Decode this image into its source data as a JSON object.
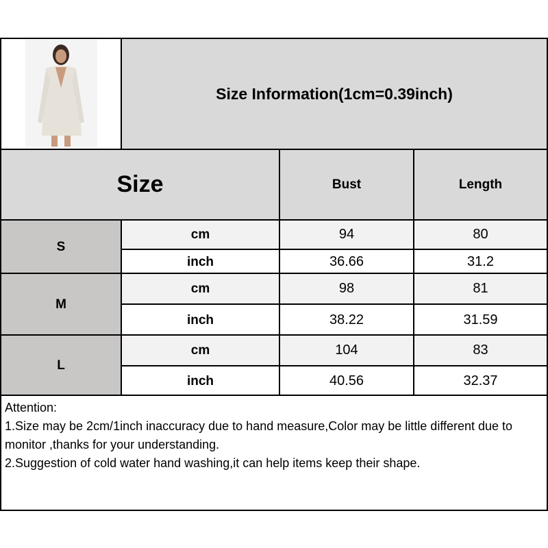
{
  "title": "Size Information(1cm=0.39inch)",
  "header": {
    "size": "Size",
    "bust": "Bust",
    "length": "Length"
  },
  "rows": [
    {
      "size": "S",
      "cm": {
        "unit": "cm",
        "bust": "94",
        "length": "80"
      },
      "inch": {
        "unit": "inch",
        "bust": "36.66",
        "length": "31.2"
      }
    },
    {
      "size": "M",
      "cm": {
        "unit": "cm",
        "bust": "98",
        "length": "81"
      },
      "inch": {
        "unit": "inch",
        "bust": "38.22",
        "length": "31.59"
      }
    },
    {
      "size": "L",
      "cm": {
        "unit": "cm",
        "bust": "104",
        "length": "83"
      },
      "inch": {
        "unit": "inch",
        "bust": "40.56",
        "length": "32.37"
      }
    }
  ],
  "notes": [
    "Attention:",
    "1.Size may be 2cm/1inch inaccuracy due to hand measure,Color may be little different due to monitor ,thanks for your understanding.",
    "2.Suggestion of cold water hand washing,it can help items keep their shape."
  ],
  "colors": {
    "header": "#d9d9d9",
    "size_cell": "#c9c6c6",
    "cm_row": "#f2f2f2",
    "inch_row": "#ffffff"
  }
}
